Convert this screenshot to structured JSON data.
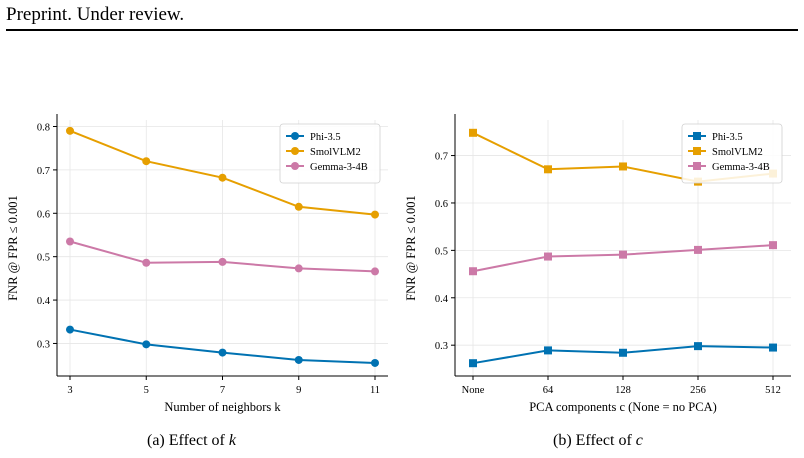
{
  "header": "Preprint. Under review.",
  "captions": {
    "a_prefix": "(a) Effect of ",
    "a_var": "k",
    "b_prefix": "(b) Effect of ",
    "b_var": "c"
  },
  "chart_data": [
    {
      "type": "line",
      "marker": "circle",
      "categories": [
        "3",
        "5",
        "7",
        "9",
        "11"
      ],
      "xlabel": "Number of neighbors k",
      "ylabel": "FNR @ FPR ≤ 0.001",
      "ylim": [
        0.225,
        0.815
      ],
      "yticks": [
        0.3,
        0.4,
        0.5,
        0.6,
        0.7,
        0.8
      ],
      "grid": true,
      "legend": "top-right",
      "series": [
        {
          "name": "Phi-3.5",
          "color": "#0072B2",
          "values": [
            0.332,
            0.298,
            0.279,
            0.262,
            0.255
          ]
        },
        {
          "name": "SmolVLM2",
          "color": "#E69F00",
          "values": [
            0.79,
            0.72,
            0.682,
            0.615,
            0.597
          ]
        },
        {
          "name": "Gemma-3-4B",
          "color": "#CC79A7",
          "values": [
            0.535,
            0.486,
            0.488,
            0.473,
            0.466
          ]
        }
      ]
    },
    {
      "type": "line",
      "marker": "square",
      "categories": [
        "None",
        "64",
        "128",
        "256",
        "512"
      ],
      "xlabel": "PCA components c (None = no PCA)",
      "ylabel": "FNR @ FPR ≤ 0.001",
      "ylim": [
        0.235,
        0.775
      ],
      "yticks": [
        0.3,
        0.4,
        0.5,
        0.6,
        0.7
      ],
      "grid": true,
      "legend": "top-right",
      "series": [
        {
          "name": "Phi-3.5",
          "color": "#0072B2",
          "values": [
            0.262,
            0.289,
            0.284,
            0.298,
            0.295
          ]
        },
        {
          "name": "SmolVLM2",
          "color": "#E69F00",
          "values": [
            0.748,
            0.671,
            0.677,
            0.645,
            0.662
          ]
        },
        {
          "name": "Gemma-3-4B",
          "color": "#CC79A7",
          "values": [
            0.456,
            0.487,
            0.491,
            0.501,
            0.511
          ]
        }
      ]
    }
  ]
}
